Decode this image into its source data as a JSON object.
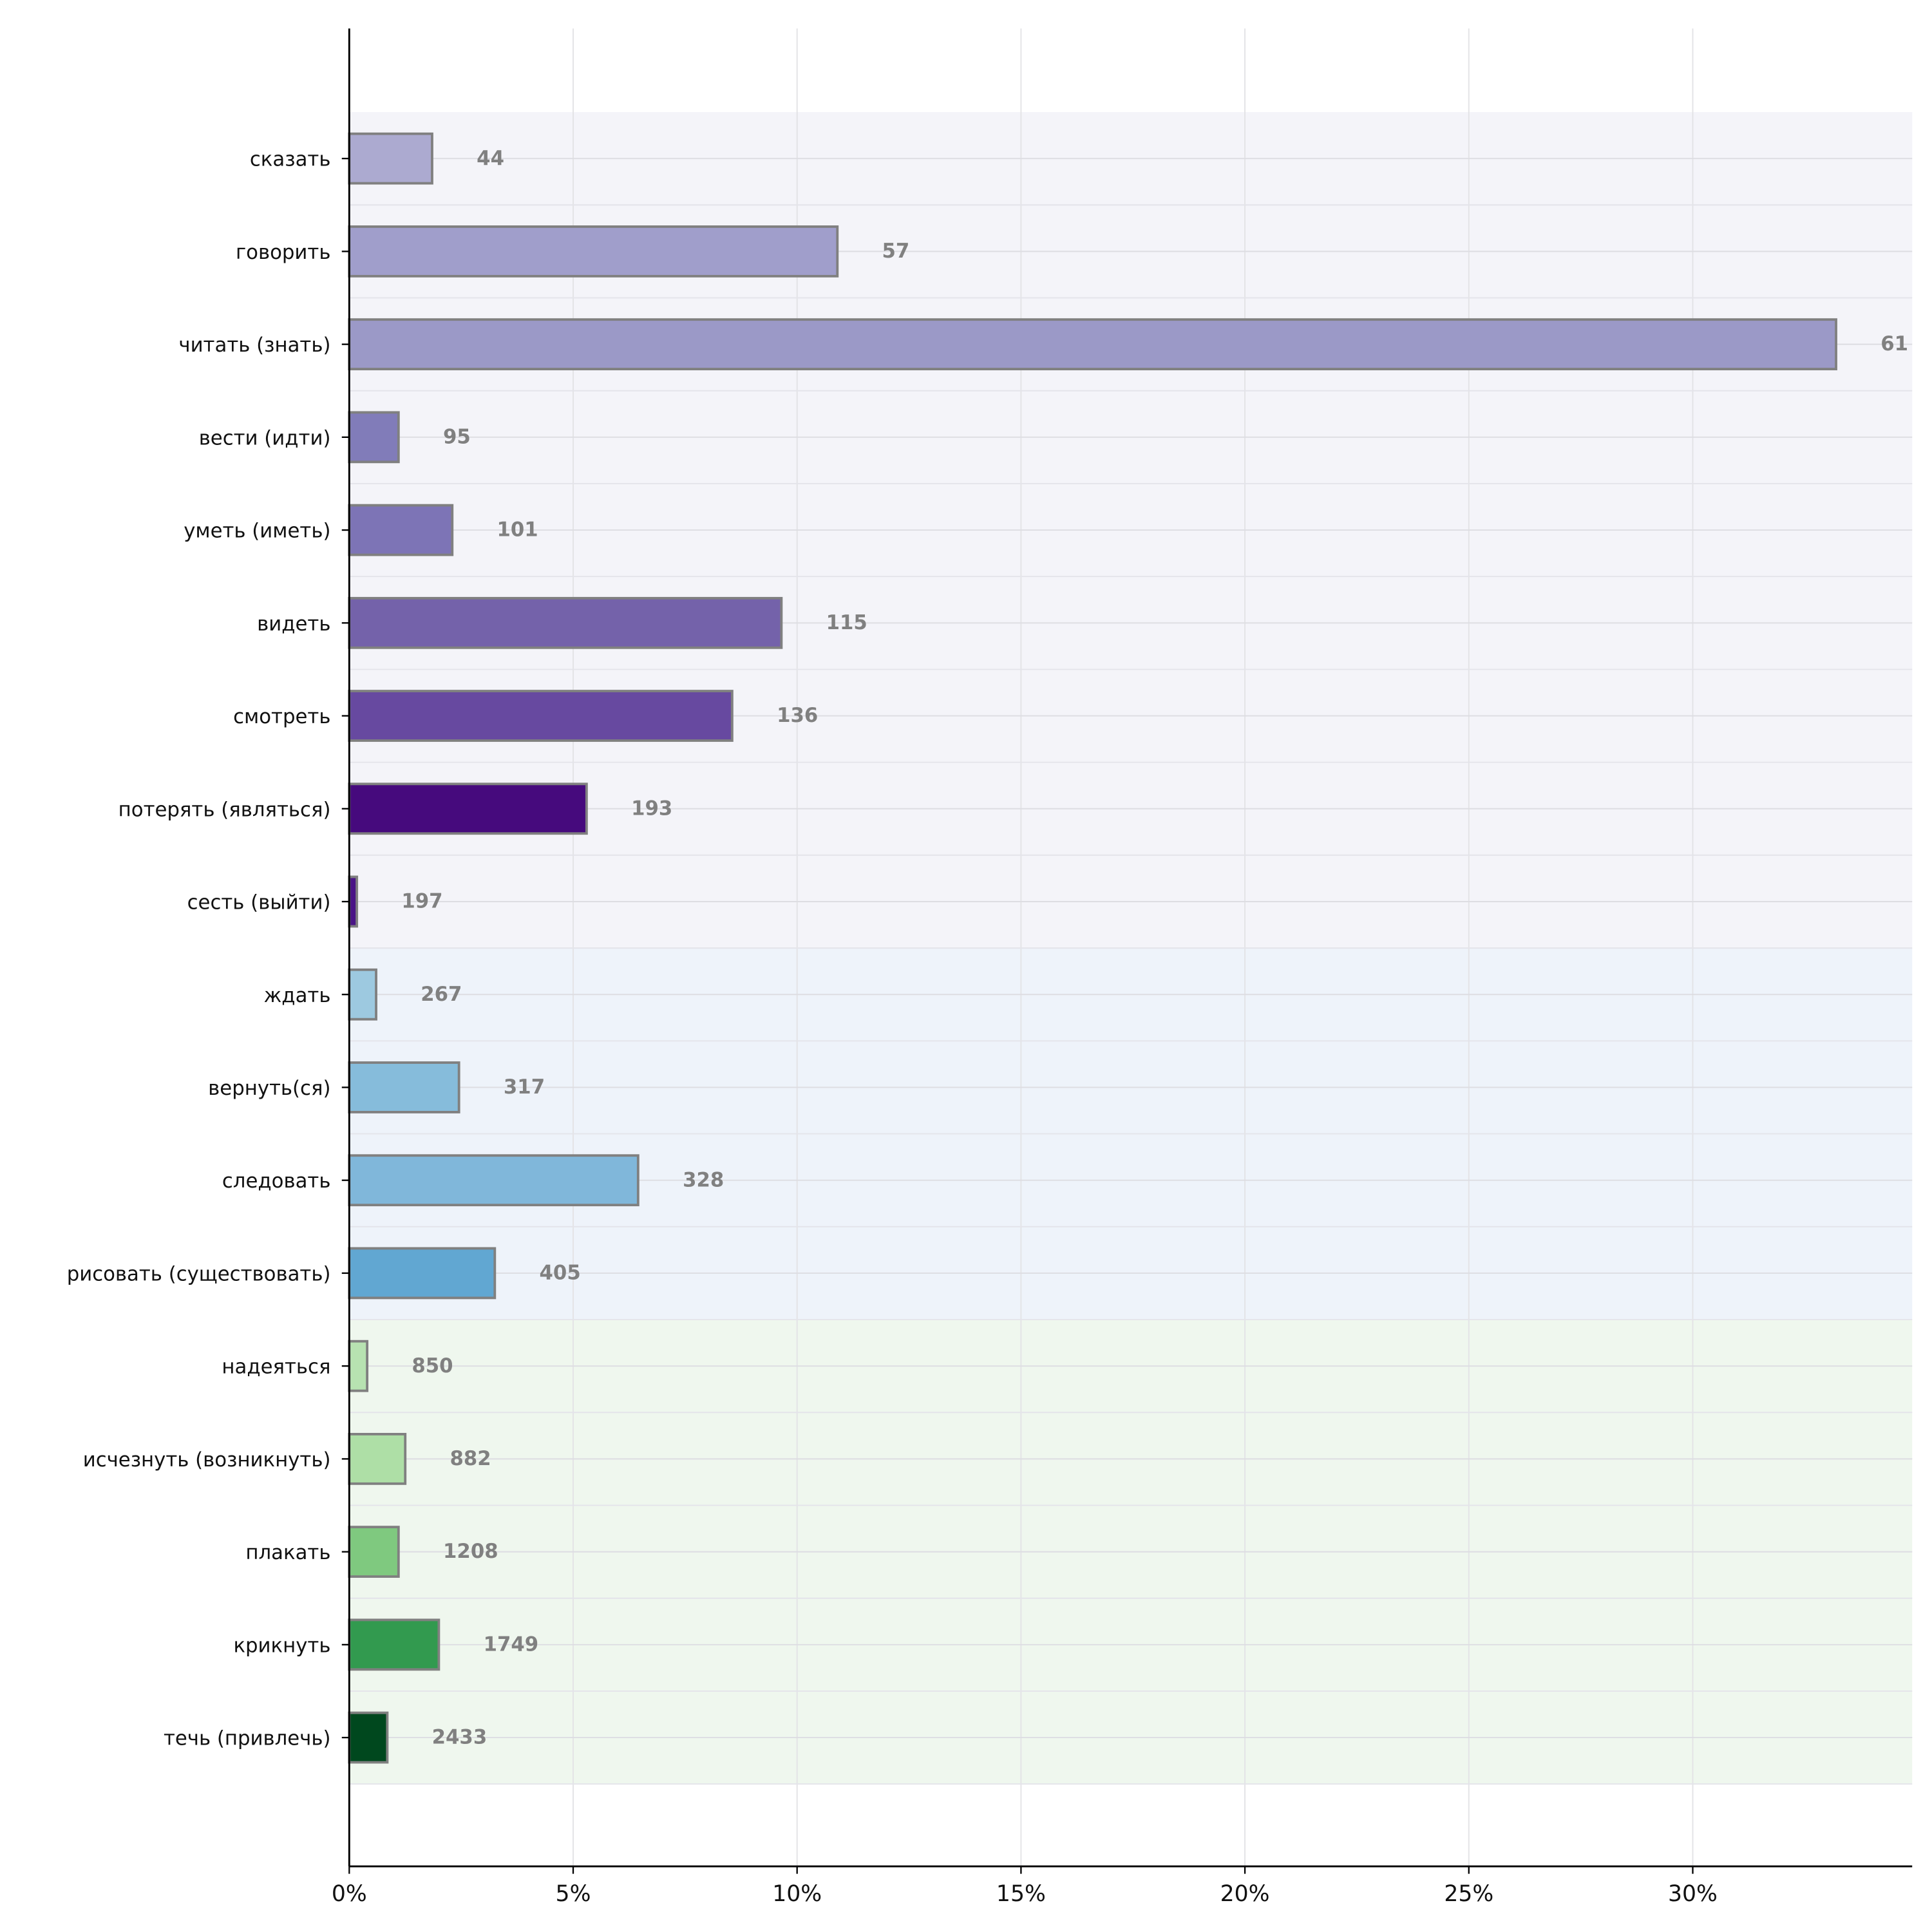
{
  "chart_data": {
    "type": "bar",
    "orientation": "horizontal",
    "title": "",
    "xlabel": "",
    "ylabel": "",
    "xlim": [
      0,
      34.9
    ],
    "x_tick_labels": [
      "0%",
      "5%",
      "10%",
      "15%",
      "20%",
      "25%",
      "30%"
    ],
    "x_ticks": [
      0,
      5,
      10,
      15,
      20,
      25,
      30
    ],
    "grid": true,
    "categories": [
      "сказать",
      "говорить",
      "читать (знать)",
      "вести (идти)",
      "уметь (иметь)",
      "видеть",
      "смотреть",
      "потерять (являться)",
      "сесть (выйти)",
      "ждать",
      "вернуть(ся)",
      "следовать",
      "рисовать (существовать)",
      "надеяться",
      "исчезнуть (возникнуть)",
      "плакать",
      "крикнуть",
      "течь (привлечь)"
    ],
    "values": [
      1.85,
      10.9,
      33.2,
      1.1,
      2.3,
      9.65,
      8.55,
      5.3,
      0.17,
      0.6,
      2.45,
      6.45,
      3.25,
      0.4,
      1.25,
      1.1,
      2.0,
      0.85
    ],
    "data_labels": [
      "44",
      "57",
      "61",
      "95",
      "101",
      "115",
      "136",
      "193",
      "197",
      "267",
      "317",
      "328",
      "405",
      "850",
      "882",
      "1208",
      "1749",
      "2433"
    ],
    "colors": [
      "#acaad0",
      "#a09ecb",
      "#9b99c7",
      "#817cb9",
      "#7d74b6",
      "#7462aa",
      "#6749a0",
      "#460a7d",
      "#4a1486",
      "#9dc9e0",
      "#86bcdb",
      "#80b7da",
      "#61a7d2",
      "#b7e2b1",
      "#aedfa6",
      "#7fc97f",
      "#329a4f",
      "#00481e"
    ],
    "bands": [
      {
        "from": 0,
        "to": 8,
        "color": "#f4f4f9"
      },
      {
        "from": 9,
        "to": 12,
        "color": "#eef3fa"
      },
      {
        "from": 13,
        "to": 17,
        "color": "#eff7ee"
      }
    ],
    "bar_edge_color": "#808080"
  }
}
